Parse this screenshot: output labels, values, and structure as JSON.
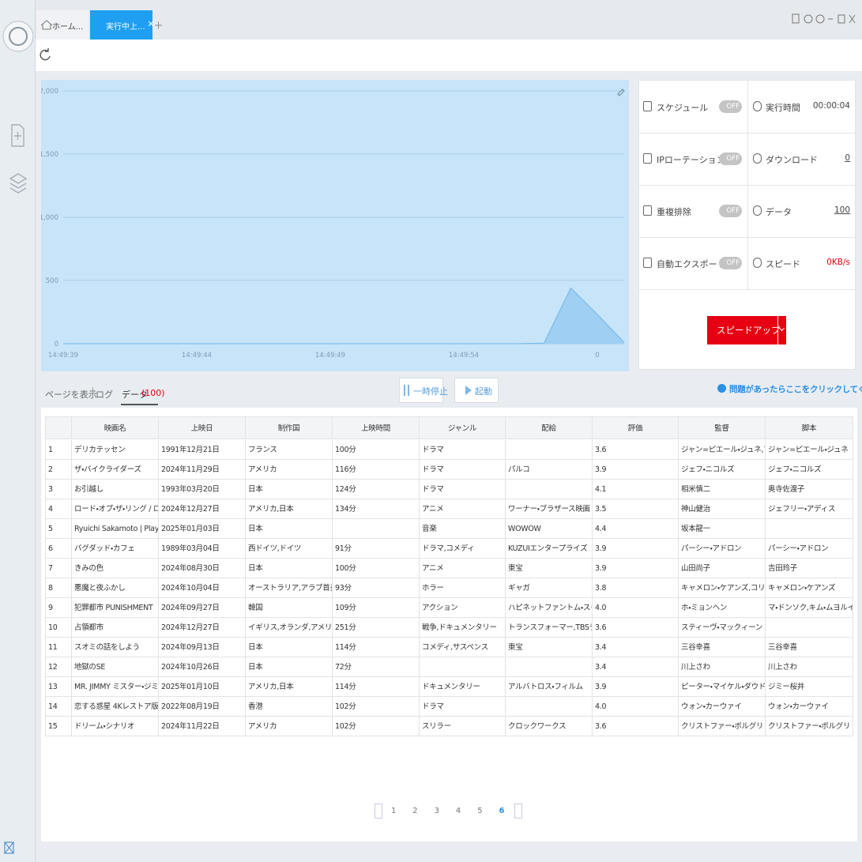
{
  "tabs": [
    {
      "label": "ホーム..."
    },
    {
      "label": "実行中上..."
    }
  ],
  "monitor_chart": {
    "type": "area",
    "ylim": [
      0,
      2000
    ],
    "yticks": [
      {
        "value": 0,
        "label": "0"
      },
      {
        "value": 500,
        "label": "500"
      },
      {
        "value": 1000,
        "label": "1,000"
      },
      {
        "value": 1500,
        "label": "1,500"
      },
      {
        "value": 2000,
        "label": "2,000"
      }
    ],
    "xtick_labels": [
      "14:49:39",
      "14:49:44",
      "14:49:49",
      "14:49:54",
      "0"
    ],
    "values": [
      0,
      0,
      0,
      0,
      0,
      0,
      0,
      0,
      0,
      0,
      0,
      0,
      0,
      0,
      0,
      0,
      0,
      0,
      5,
      440,
      230,
      10
    ],
    "color": "#9fcff2"
  },
  "stats": [
    {
      "left": {
        "label": "スケジュール",
        "toggle": "OFF"
      },
      "right": {
        "label": "実行時間",
        "value": "00:00:04"
      }
    },
    {
      "left": {
        "label": "IPローテーション",
        "toggle": "OFF"
      },
      "right": {
        "label": "ダウンロード",
        "value": 0
      }
    },
    {
      "left": {
        "label": "重複排除",
        "toggle": "OFF"
      },
      "right": {
        "label": "データ",
        "value": 100
      }
    },
    {
      "left": {
        "label": "自動エクスポート",
        "toggle": "OFF"
      },
      "right": {
        "label": "スピード",
        "value": "0KB/s"
      }
    }
  ],
  "speed_up_button": "スピードアップ",
  "view_tabs": {
    "page": "ページを表示",
    "log": "ログ",
    "data": "データ",
    "count": "(100)"
  },
  "controls": {
    "pause": "一時停止",
    "start": "起動"
  },
  "help": "問題があったらここをクリックしてください",
  "table": {
    "columns": [
      "映画名",
      "上映日",
      "制作国",
      "上映時間",
      "ジャンル",
      "配給",
      "評価",
      "監督",
      "脚本"
    ],
    "rows": [
      [
        1,
        "デリカテッセン",
        "1991年12月21日",
        "フランス",
        "100分",
        "ドラマ",
        null,
        "3.6",
        "ジャン=ピエール・ジュネ,マル...",
        "ジャン=ピエール・ジュネ"
      ],
      [
        2,
        "ザ・バイクライダーズ",
        "2024年11月29日",
        "アメリカ",
        "116分",
        "ドラマ",
        "パルコ",
        "3.9",
        "ジェフ・ニコルズ",
        "ジェフ・ニコルズ"
      ],
      [
        3,
        "お引越し",
        "1993年03月20日",
        "日本",
        "124分",
        "ドラマ",
        null,
        "4.1",
        "相米慎二",
        "奥寺佐渡子"
      ],
      [
        4,
        "ロード・オブ・ザ・リング / ロ...",
        "2024年12月27日",
        "アメリカ,日本",
        "134分",
        "アニメ",
        "ワーナー・ブラザース映画",
        "3.5",
        "神山健治",
        "ジェフリー・アディス"
      ],
      [
        5,
        "Ryuichi Sakamoto | Playing the ...",
        "2025年01月03日",
        "日本",
        null,
        "音楽",
        "WOWOW",
        "4.4",
        "坂本龍一",
        null
      ],
      [
        6,
        "バグダッド・カフェ",
        "1989年03月04日",
        "西ドイツ,ドイツ",
        "91分",
        "ドラマ,コメディ",
        "KUZUIエンタープライズ",
        "3.9",
        "パーシー・アドロン",
        "パーシー・アドロン"
      ],
      [
        7,
        "きみの色",
        "2024年08月30日",
        "日本",
        "100分",
        "アニメ",
        "東宝",
        "3.9",
        "山田尚子",
        "吉田玲子"
      ],
      [
        8,
        "悪魔と夜ふかし",
        "2024年10月04日",
        "オーストラリア,アラブ首長国連邦",
        "93分",
        "ホラー",
        "ギャガ",
        "3.8",
        "キャメロン・ケアンズ,コリン・...",
        "キャメロン・ケアンズ"
      ],
      [
        9,
        "犯罪都市 PUNISHMENT",
        "2024年09月27日",
        "韓国",
        "109分",
        "アクション",
        "ハピネットファントム・スタジオ",
        "4.0",
        "ホ・ミョンヘン",
        "マ・ドンソク,キム・ムヨルイ・..."
      ],
      [
        10,
        "占領都市",
        "2024年12月27日",
        "イギリス,オランダ,アメリカ",
        "251分",
        "戦争,ドキュメンタリー",
        "トランスフォーマー,TBSテレビ",
        "3.6",
        "スティーヴ・マックィーン",
        null
      ],
      [
        11,
        "スオミの話をしよう",
        "2024年09月13日",
        "日本",
        "114分",
        "コメディ,サスペンス",
        "東宝",
        "3.4",
        "三谷幸喜",
        "三谷幸喜"
      ],
      [
        12,
        "地獄のSE",
        "2024年10月26日",
        "日本",
        "72分",
        null,
        null,
        "3.4",
        "川上さわ",
        "川上さわ"
      ],
      [
        13,
        "MR. JIMMY ミスター・ジミー ...",
        "2025年01月10日",
        "アメリカ,日本",
        "114分",
        "ドキュメンタリー",
        "アルバトロス・フィルム",
        "3.9",
        "ピーター・マイケル・ダウド",
        "ジミー桜井"
      ],
      [
        14,
        "恋する惑星 4Kレストア版",
        "2022年08月19日",
        "香港",
        "102分",
        "ドラマ",
        null,
        "4.0",
        "ウォン・カーウァイ",
        "ウォン・カーウァイ"
      ],
      [
        15,
        "ドリーム・シナリオ",
        "2024年11月22日",
        "アメリカ",
        "102分",
        "スリラー",
        "クロックワークス",
        "3.6",
        "クリストファー・ボルグリ",
        "クリストファー・ボルグリ"
      ]
    ]
  },
  "pagination": {
    "pages": [
      1,
      2,
      3,
      4,
      5,
      6
    ],
    "current": 6
  }
}
